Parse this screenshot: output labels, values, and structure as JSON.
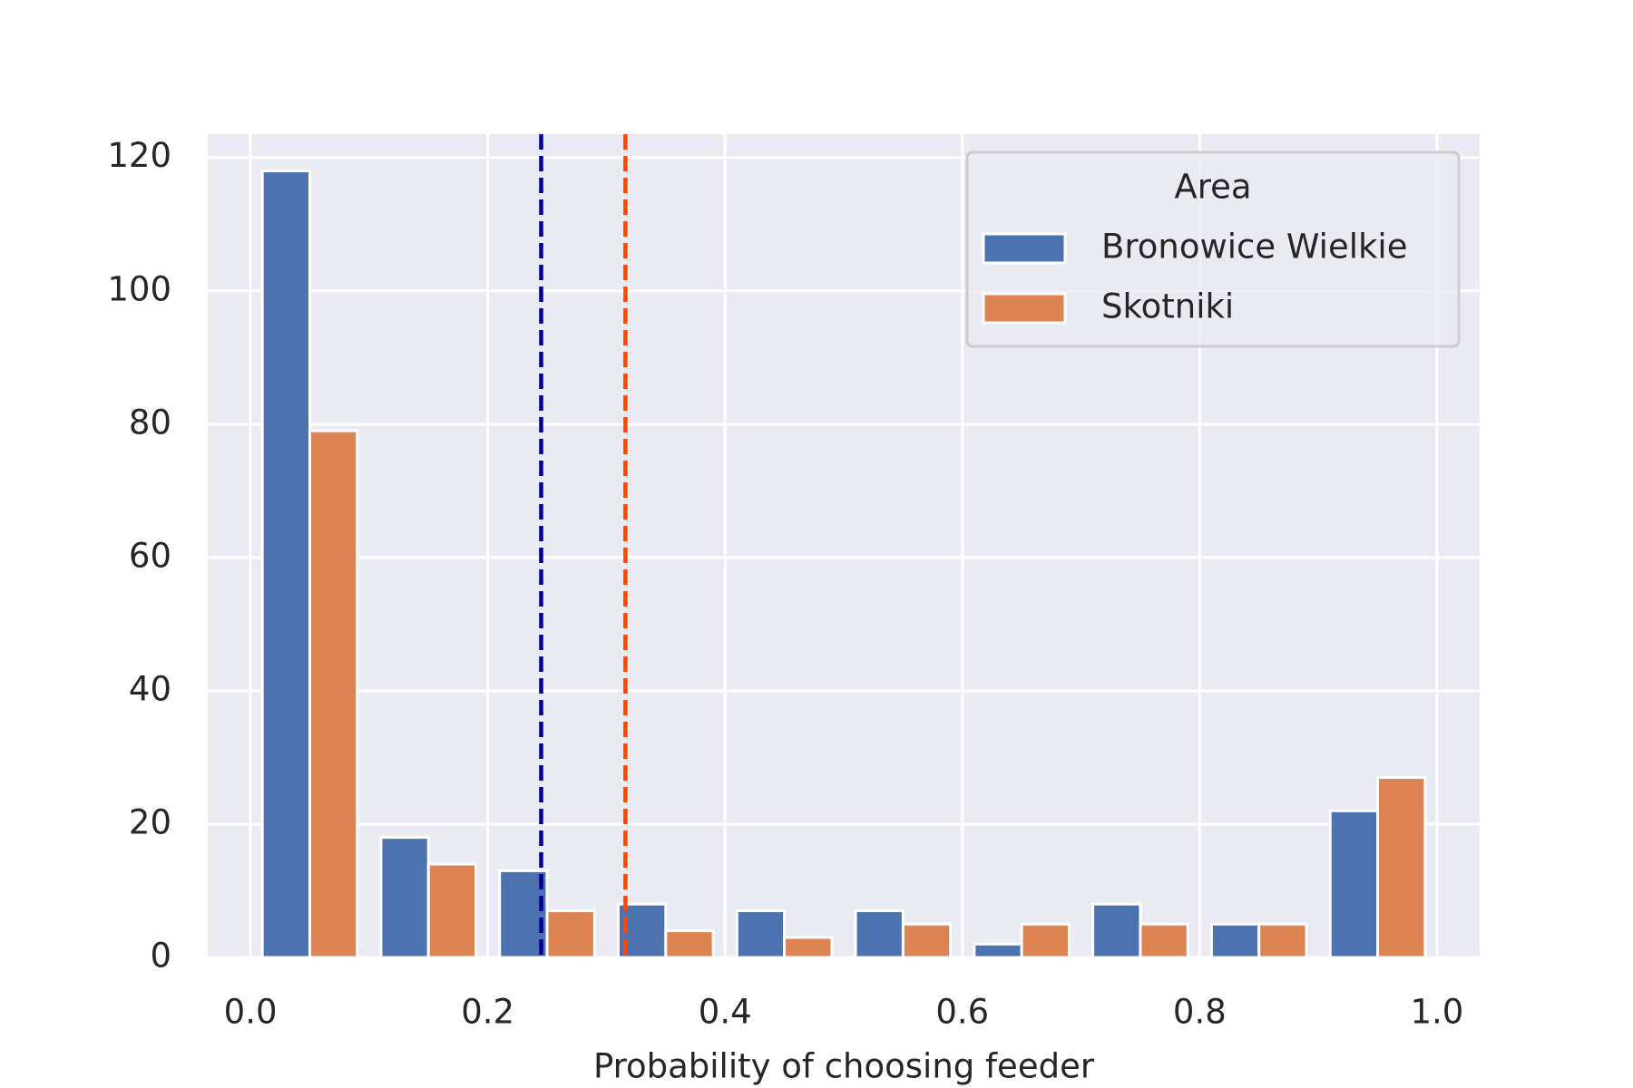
{
  "chart_data": {
    "type": "histogram",
    "xlabel": "Probability of choosing feeder",
    "bins": [
      0.0,
      0.1,
      0.2,
      0.3,
      0.4,
      0.5,
      0.6,
      0.7,
      0.8,
      0.9,
      1.0
    ],
    "series": [
      {
        "name": "Bronowice Wielkie",
        "color": "#4c72b0",
        "values": [
          118,
          18,
          13,
          8,
          7,
          7,
          2,
          8,
          5,
          22
        ]
      },
      {
        "name": "Skotniki",
        "color": "#dd8452",
        "values": [
          79,
          14,
          7,
          4,
          3,
          5,
          5,
          5,
          5,
          27
        ]
      }
    ],
    "reference_lines": [
      {
        "value": 0.245,
        "color": "#00008b"
      },
      {
        "value": 0.316,
        "color": "#ff4500"
      }
    ],
    "legend_title": "Area",
    "legend": "upper right",
    "xlim": [
      -0.036,
      1.036
    ],
    "ylim": [
      0,
      123.5
    ],
    "xticks": [
      {
        "value": 0,
        "label": "0.0"
      },
      0.2,
      0.4,
      0.6,
      0.8,
      {
        "value": 1,
        "label": "1.0"
      }
    ],
    "yticks": [
      0,
      20,
      40,
      60,
      80,
      100,
      120
    ],
    "grid": true
  }
}
